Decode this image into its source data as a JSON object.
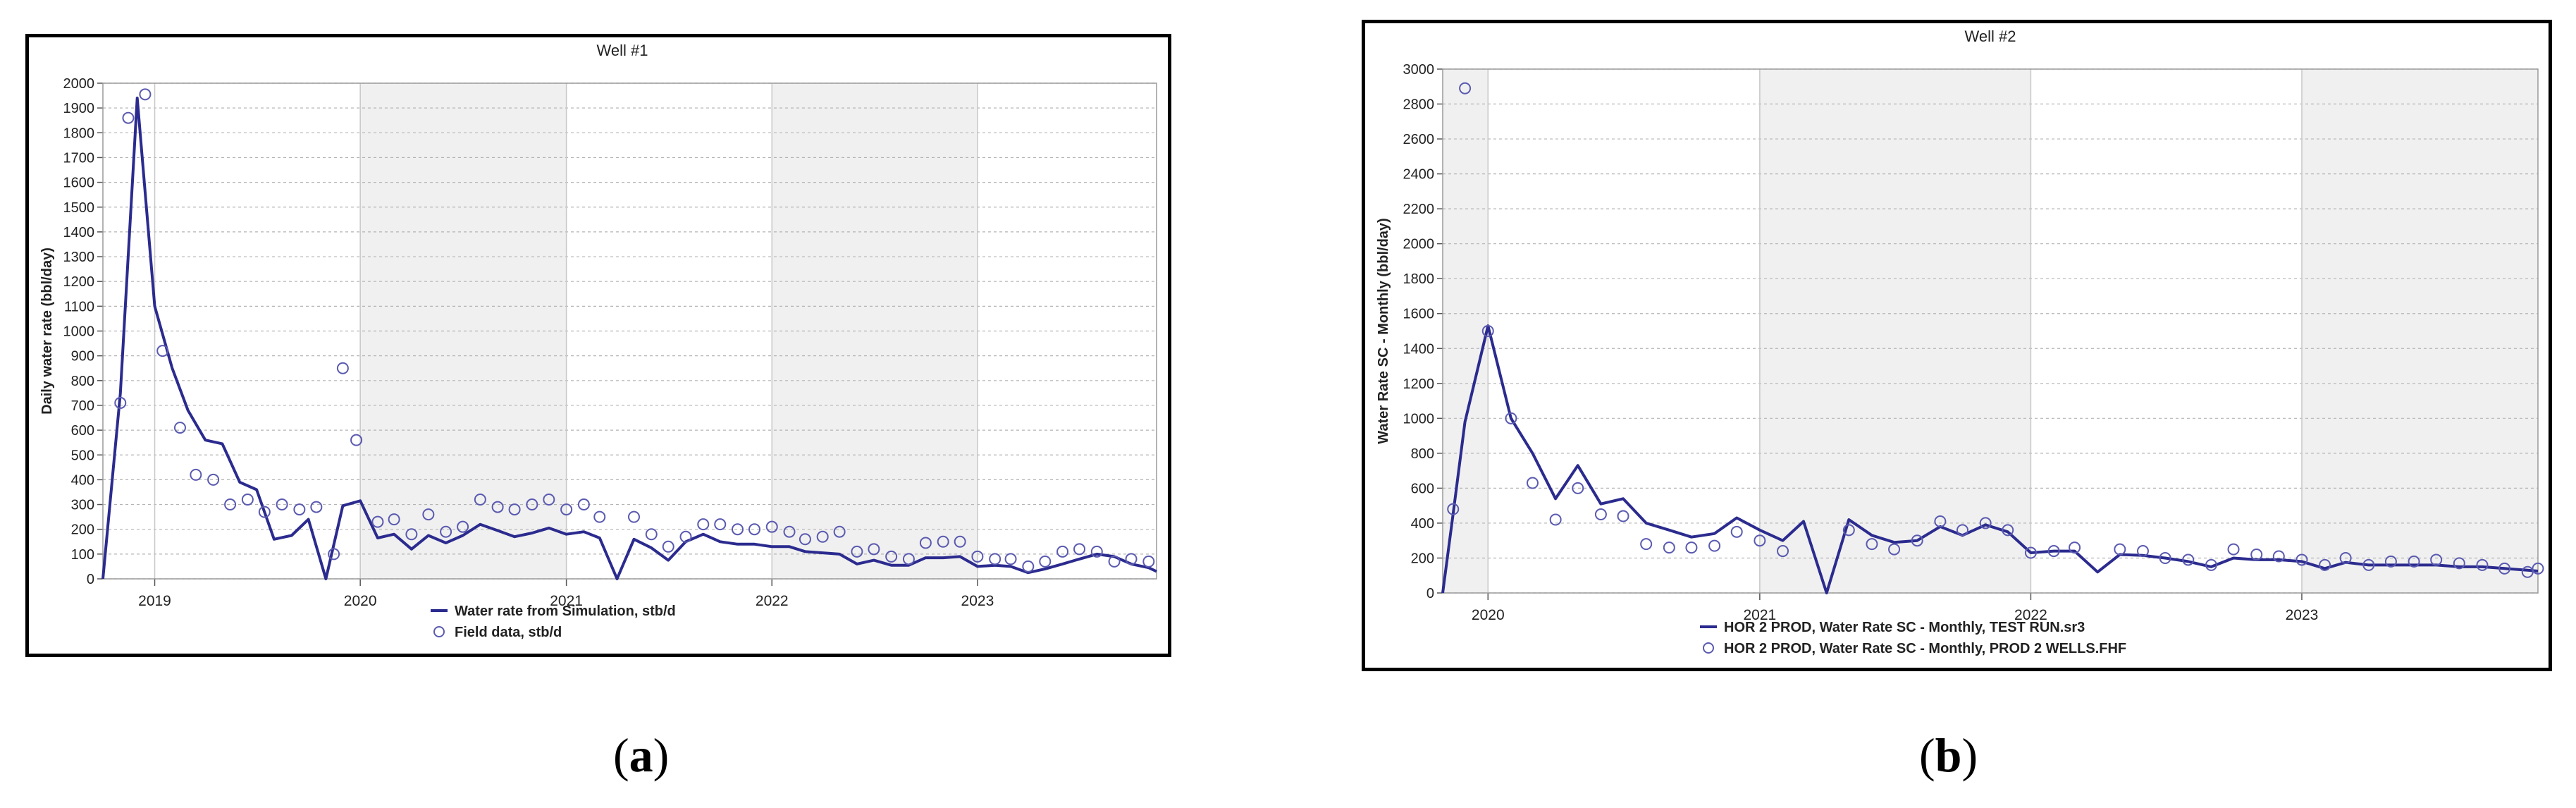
{
  "colors": {
    "line": "#2b2b8f",
    "marker": "#5a5ab0",
    "grid": "#b4b4b4",
    "shade": "#f0f0f0"
  },
  "captions": {
    "a_letter": "a",
    "b_letter": "b",
    "open": "(",
    "close": ")"
  },
  "chart_data": [
    {
      "type": "line",
      "title": "Well #1",
      "ylabel": "Daily water rate (bbl/day)",
      "xlabel": "",
      "x_axis": "date",
      "xlim": [
        "2018-10-01",
        "2023-11-15"
      ],
      "ylim": [
        0,
        2000
      ],
      "y_ticks": [
        0,
        100,
        200,
        300,
        400,
        500,
        600,
        700,
        800,
        900,
        1000,
        1100,
        1200,
        1300,
        1400,
        1500,
        1600,
        1700,
        1800,
        1900,
        2000
      ],
      "x_ticks": [
        {
          "date": "2019-01-01",
          "label": "2019"
        },
        {
          "date": "2020-01-01",
          "label": "2020"
        },
        {
          "date": "2021-01-01",
          "label": "2021"
        },
        {
          "date": "2022-01-01",
          "label": "2022"
        },
        {
          "date": "2023-01-01",
          "label": "2023"
        }
      ],
      "grid": true,
      "shaded_years": [
        "2020",
        "2022"
      ],
      "legend_position": "bottom",
      "series": [
        {
          "name": "Water rate from Simulation, stb/d",
          "kind": "line",
          "points": [
            [
              "2018-10-01",
              0
            ],
            [
              "2018-11-01",
              750
            ],
            [
              "2018-12-01",
              1940
            ],
            [
              "2019-01-01",
              1100
            ],
            [
              "2019-02-01",
              850
            ],
            [
              "2019-03-01",
              680
            ],
            [
              "2019-04-01",
              560
            ],
            [
              "2019-05-01",
              545
            ],
            [
              "2019-06-01",
              390
            ],
            [
              "2019-07-01",
              360
            ],
            [
              "2019-08-01",
              160
            ],
            [
              "2019-09-01",
              175
            ],
            [
              "2019-10-01",
              240
            ],
            [
              "2019-11-01",
              0
            ],
            [
              "2019-12-01",
              295
            ],
            [
              "2020-01-01",
              315
            ],
            [
              "2020-02-01",
              165
            ],
            [
              "2020-03-01",
              180
            ],
            [
              "2020-04-01",
              120
            ],
            [
              "2020-05-01",
              175
            ],
            [
              "2020-06-01",
              145
            ],
            [
              "2020-07-01",
              175
            ],
            [
              "2020-08-01",
              220
            ],
            [
              "2020-09-01",
              195
            ],
            [
              "2020-10-01",
              170
            ],
            [
              "2020-11-01",
              185
            ],
            [
              "2020-12-01",
              205
            ],
            [
              "2021-01-01",
              180
            ],
            [
              "2021-02-01",
              190
            ],
            [
              "2021-03-01",
              165
            ],
            [
              "2021-04-01",
              0
            ],
            [
              "2021-05-01",
              160
            ],
            [
              "2021-06-01",
              125
            ],
            [
              "2021-07-01",
              75
            ],
            [
              "2021-08-01",
              150
            ],
            [
              "2021-09-01",
              180
            ],
            [
              "2021-10-01",
              150
            ],
            [
              "2021-11-01",
              140
            ],
            [
              "2021-12-01",
              140
            ],
            [
              "2022-01-01",
              130
            ],
            [
              "2022-02-01",
              130
            ],
            [
              "2022-03-01",
              110
            ],
            [
              "2022-04-01",
              105
            ],
            [
              "2022-05-01",
              100
            ],
            [
              "2022-06-01",
              60
            ],
            [
              "2022-07-01",
              75
            ],
            [
              "2022-08-01",
              55
            ],
            [
              "2022-09-01",
              55
            ],
            [
              "2022-10-01",
              85
            ],
            [
              "2022-11-01",
              85
            ],
            [
              "2022-12-01",
              90
            ],
            [
              "2023-01-01",
              50
            ],
            [
              "2023-02-01",
              55
            ],
            [
              "2023-03-01",
              50
            ],
            [
              "2023-04-01",
              25
            ],
            [
              "2023-05-01",
              40
            ],
            [
              "2023-06-01",
              60
            ],
            [
              "2023-07-01",
              80
            ],
            [
              "2023-08-01",
              100
            ],
            [
              "2023-09-01",
              90
            ],
            [
              "2023-10-01",
              60
            ],
            [
              "2023-11-01",
              45
            ],
            [
              "2023-11-15",
              30
            ]
          ]
        },
        {
          "name": "Field data, stb/d",
          "kind": "scatter",
          "points": [
            [
              "2018-11-01",
              710
            ],
            [
              "2018-11-15",
              1860
            ],
            [
              "2018-12-15",
              1955
            ],
            [
              "2019-01-15",
              920
            ],
            [
              "2019-02-15",
              610
            ],
            [
              "2019-03-15",
              420
            ],
            [
              "2019-04-15",
              400
            ],
            [
              "2019-05-15",
              300
            ],
            [
              "2019-06-15",
              320
            ],
            [
              "2019-07-15",
              270
            ],
            [
              "2019-08-15",
              300
            ],
            [
              "2019-09-15",
              280
            ],
            [
              "2019-10-15",
              290
            ],
            [
              "2019-11-15",
              100
            ],
            [
              "2019-12-01",
              850
            ],
            [
              "2019-12-25",
              560
            ],
            [
              "2020-02-01",
              230
            ],
            [
              "2020-03-01",
              240
            ],
            [
              "2020-04-01",
              180
            ],
            [
              "2020-05-01",
              260
            ],
            [
              "2020-06-01",
              190
            ],
            [
              "2020-07-01",
              210
            ],
            [
              "2020-08-01",
              320
            ],
            [
              "2020-09-01",
              290
            ],
            [
              "2020-10-01",
              280
            ],
            [
              "2020-11-01",
              300
            ],
            [
              "2020-12-01",
              320
            ],
            [
              "2021-01-01",
              280
            ],
            [
              "2021-02-01",
              300
            ],
            [
              "2021-03-01",
              250
            ],
            [
              "2021-05-01",
              250
            ],
            [
              "2021-06-01",
              180
            ],
            [
              "2021-07-01",
              130
            ],
            [
              "2021-08-01",
              170
            ],
            [
              "2021-09-01",
              220
            ],
            [
              "2021-10-01",
              220
            ],
            [
              "2021-11-01",
              200
            ],
            [
              "2021-12-01",
              200
            ],
            [
              "2022-01-01",
              210
            ],
            [
              "2022-02-01",
              190
            ],
            [
              "2022-03-01",
              160
            ],
            [
              "2022-04-01",
              170
            ],
            [
              "2022-05-01",
              190
            ],
            [
              "2022-06-01",
              110
            ],
            [
              "2022-07-01",
              120
            ],
            [
              "2022-08-01",
              90
            ],
            [
              "2022-09-01",
              80
            ],
            [
              "2022-10-01",
              145
            ],
            [
              "2022-11-01",
              150
            ],
            [
              "2022-12-01",
              150
            ],
            [
              "2023-01-01",
              90
            ],
            [
              "2023-02-01",
              80
            ],
            [
              "2023-03-01",
              80
            ],
            [
              "2023-04-01",
              50
            ],
            [
              "2023-05-01",
              70
            ],
            [
              "2023-06-01",
              110
            ],
            [
              "2023-07-01",
              120
            ],
            [
              "2023-08-01",
              110
            ],
            [
              "2023-09-01",
              70
            ],
            [
              "2023-10-01",
              80
            ],
            [
              "2023-11-01",
              70
            ]
          ]
        }
      ]
    },
    {
      "type": "line",
      "title": "Well #2",
      "ylabel": "Water Rate SC - Monthly (bbl/day)",
      "xlabel": "",
      "x_axis": "date",
      "xlim": [
        "2019-11-01",
        "2023-11-15"
      ],
      "ylim": [
        0,
        3000
      ],
      "y_ticks": [
        0,
        200,
        400,
        600,
        800,
        1000,
        1200,
        1400,
        1600,
        1800,
        2000,
        2200,
        2400,
        2600,
        2800,
        3000
      ],
      "x_ticks": [
        {
          "date": "2020-01-01",
          "label": "2020"
        },
        {
          "date": "2021-01-01",
          "label": "2021"
        },
        {
          "date": "2022-01-01",
          "label": "2022"
        },
        {
          "date": "2023-01-01",
          "label": "2023"
        }
      ],
      "grid": true,
      "shaded_years": [
        "2019",
        "2021",
        "2023"
      ],
      "legend_position": "bottom",
      "series": [
        {
          "name": "HOR 2 PROD, Water Rate SC - Monthly, TEST RUN.sr3",
          "kind": "line",
          "points": [
            [
              "2019-11-01",
              0
            ],
            [
              "2019-11-15",
              450
            ],
            [
              "2019-12-01",
              980
            ],
            [
              "2020-01-01",
              1530
            ],
            [
              "2020-02-01",
              1000
            ],
            [
              "2020-03-01",
              800
            ],
            [
              "2020-04-01",
              540
            ],
            [
              "2020-05-01",
              730
            ],
            [
              "2020-06-01",
              510
            ],
            [
              "2020-07-01",
              540
            ],
            [
              "2020-08-01",
              400
            ],
            [
              "2020-09-01",
              360
            ],
            [
              "2020-10-01",
              320
            ],
            [
              "2020-11-01",
              340
            ],
            [
              "2020-12-01",
              430
            ],
            [
              "2021-01-01",
              360
            ],
            [
              "2021-02-01",
              300
            ],
            [
              "2021-03-01",
              410
            ],
            [
              "2021-04-01",
              0
            ],
            [
              "2021-05-01",
              420
            ],
            [
              "2021-06-01",
              330
            ],
            [
              "2021-07-01",
              290
            ],
            [
              "2021-08-01",
              300
            ],
            [
              "2021-09-01",
              380
            ],
            [
              "2021-10-01",
              330
            ],
            [
              "2021-11-01",
              390
            ],
            [
              "2021-12-01",
              350
            ],
            [
              "2022-01-01",
              230
            ],
            [
              "2022-02-01",
              240
            ],
            [
              "2022-03-01",
              240
            ],
            [
              "2022-04-01",
              120
            ],
            [
              "2022-05-01",
              220
            ],
            [
              "2022-06-01",
              215
            ],
            [
              "2022-07-01",
              200
            ],
            [
              "2022-08-01",
              180
            ],
            [
              "2022-09-01",
              150
            ],
            [
              "2022-10-01",
              200
            ],
            [
              "2022-11-01",
              190
            ],
            [
              "2022-12-01",
              190
            ],
            [
              "2023-01-01",
              180
            ],
            [
              "2023-02-01",
              140
            ],
            [
              "2023-03-01",
              175
            ],
            [
              "2023-04-01",
              160
            ],
            [
              "2023-05-01",
              160
            ],
            [
              "2023-06-01",
              160
            ],
            [
              "2023-07-01",
              160
            ],
            [
              "2023-08-01",
              150
            ],
            [
              "2023-09-01",
              150
            ],
            [
              "2023-10-01",
              140
            ],
            [
              "2023-11-01",
              130
            ],
            [
              "2023-11-15",
              125
            ]
          ]
        },
        {
          "name": "HOR 2 PROD, Water Rate SC - Monthly, PROD 2 WELLS.FHF",
          "kind": "scatter",
          "points": [
            [
              "2019-11-15",
              480
            ],
            [
              "2019-12-01",
              2890
            ],
            [
              "2020-01-01",
              1500
            ],
            [
              "2020-02-01",
              1000
            ],
            [
              "2020-03-01",
              630
            ],
            [
              "2020-04-01",
              420
            ],
            [
              "2020-05-01",
              600
            ],
            [
              "2020-06-01",
              450
            ],
            [
              "2020-07-01",
              440
            ],
            [
              "2020-08-01",
              280
            ],
            [
              "2020-09-01",
              260
            ],
            [
              "2020-10-01",
              260
            ],
            [
              "2020-11-01",
              270
            ],
            [
              "2020-12-01",
              350
            ],
            [
              "2021-01-01",
              300
            ],
            [
              "2021-02-01",
              240
            ],
            [
              "2021-05-01",
              360
            ],
            [
              "2021-06-01",
              280
            ],
            [
              "2021-07-01",
              250
            ],
            [
              "2021-08-01",
              300
            ],
            [
              "2021-09-01",
              410
            ],
            [
              "2021-10-01",
              360
            ],
            [
              "2021-11-01",
              400
            ],
            [
              "2021-12-01",
              360
            ],
            [
              "2022-01-01",
              230
            ],
            [
              "2022-02-01",
              240
            ],
            [
              "2022-03-01",
              260
            ],
            [
              "2022-05-01",
              250
            ],
            [
              "2022-06-01",
              240
            ],
            [
              "2022-07-01",
              200
            ],
            [
              "2022-08-01",
              190
            ],
            [
              "2022-09-01",
              160
            ],
            [
              "2022-10-01",
              250
            ],
            [
              "2022-11-01",
              220
            ],
            [
              "2022-12-01",
              210
            ],
            [
              "2023-01-01",
              190
            ],
            [
              "2023-02-01",
              160
            ],
            [
              "2023-03-01",
              200
            ],
            [
              "2023-04-01",
              160
            ],
            [
              "2023-05-01",
              180
            ],
            [
              "2023-06-01",
              180
            ],
            [
              "2023-07-01",
              190
            ],
            [
              "2023-08-01",
              170
            ],
            [
              "2023-09-01",
              160
            ],
            [
              "2023-10-01",
              140
            ],
            [
              "2023-11-01",
              120
            ],
            [
              "2023-11-15",
              140
            ]
          ]
        }
      ]
    }
  ]
}
